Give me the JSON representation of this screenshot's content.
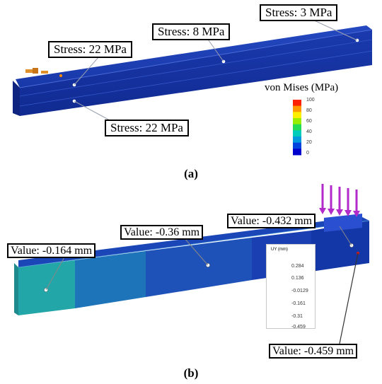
{
  "panel_a": {
    "caption": "(a)",
    "callouts": [
      "Stress: 3 MPa",
      "Stress: 8 MPa",
      "Stress: 22 MPa",
      "Stress: 22 MPa"
    ],
    "legend": {
      "title": "von Mises (MPa)",
      "ticks": [
        "100",
        "80",
        "60",
        "40",
        "20",
        "0"
      ],
      "colors": [
        "#ff2200",
        "#ff9900",
        "#ffee00",
        "#99ee00",
        "#22dd55",
        "#00ccbb",
        "#0099dd",
        "#0044dd",
        "#0000cc"
      ]
    },
    "beam_color": "#1a3fb5"
  },
  "panel_b": {
    "caption": "(b)",
    "callouts": [
      "Value: -0.164 mm",
      "Value: -0.36 mm",
      "Value: -0.432 mm",
      "Value: -0.459 mm"
    ],
    "legend": {
      "title": "UY (mm)",
      "ticks": [
        "0.284",
        "0.136",
        "-0.0129",
        "-0.161",
        "-0.31",
        "-0.459"
      ],
      "colors": [
        "#ff2200",
        "#ff8800",
        "#ffdd00",
        "#88ee00",
        "#22dd66",
        "#00ccbb",
        "#0099dd",
        "#0055dd",
        "#0022cc"
      ]
    },
    "load_arrow_color": "#b22ac9"
  }
}
